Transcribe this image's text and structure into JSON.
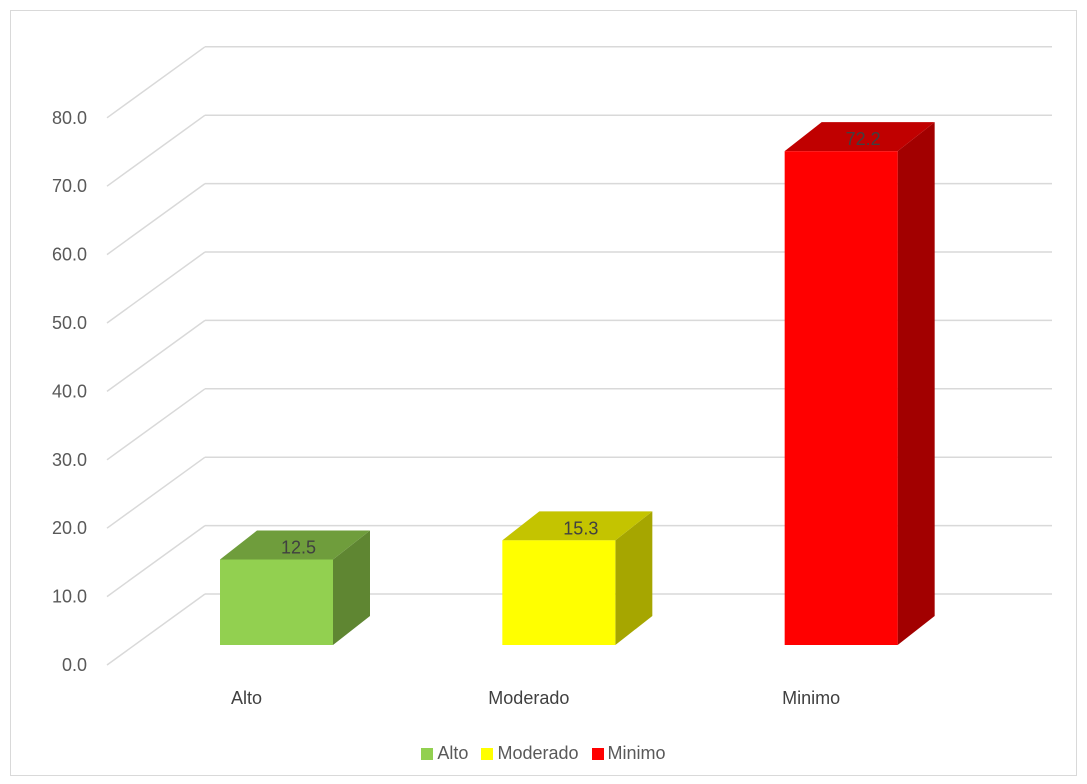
{
  "chart_data": {
    "type": "bar",
    "categories": [
      "Alto",
      "Moderado",
      "Minimo"
    ],
    "values": [
      12.5,
      15.3,
      72.2
    ],
    "data_labels": [
      "12.5",
      "15.3",
      "72.2"
    ],
    "ylim": [
      0,
      80
    ],
    "y_ticks": [
      "0.0",
      "10.0",
      "20.0",
      "30.0",
      "40.0",
      "50.0",
      "60.0",
      "70.0",
      "80.0"
    ],
    "grid": true,
    "three_d": true,
    "legend_position": "bottom",
    "colors": [
      {
        "front": "#92d050",
        "top": "#6f9d3c",
        "side": "#5f8632"
      },
      {
        "front": "#ffff00",
        "top": "#c4c400",
        "side": "#a6a600"
      },
      {
        "front": "#ff0000",
        "top": "#c00000",
        "side": "#a20000"
      }
    ],
    "legend": [
      "Alto",
      "Moderado",
      "Minimo"
    ]
  }
}
